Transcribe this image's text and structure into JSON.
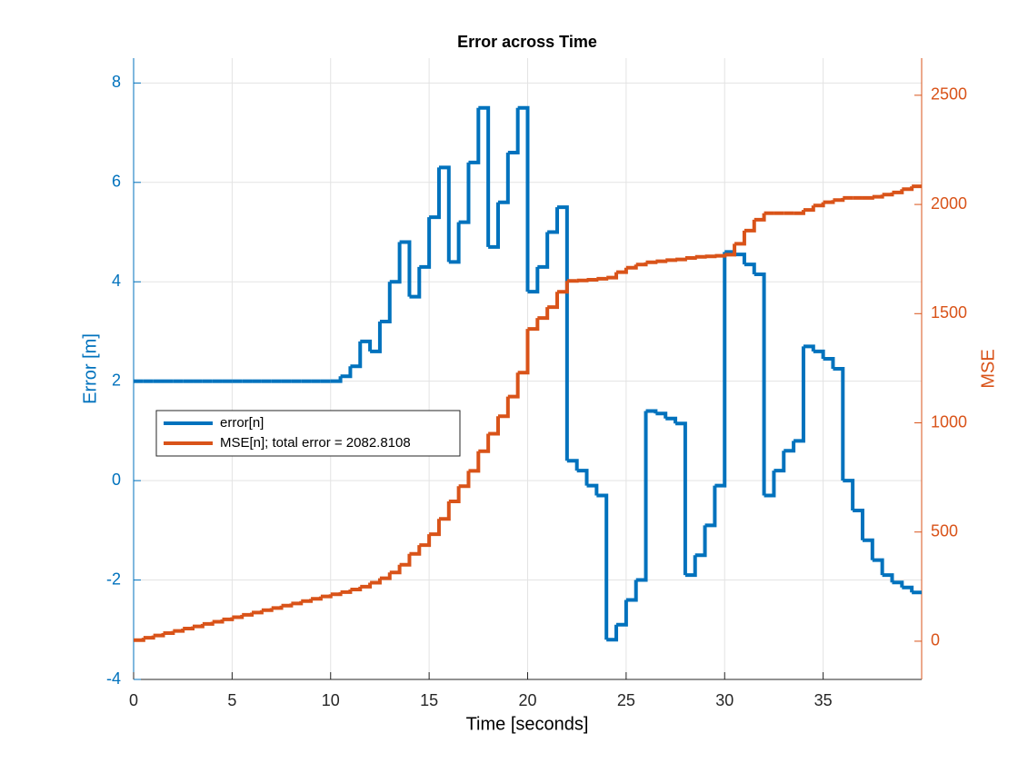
{
  "chart_data": {
    "type": "stairs",
    "title": "Error across Time",
    "xlabel": "Time [seconds]",
    "ylabel": "Error [m]",
    "y2label": "MSE",
    "x": [
      0,
      0.5,
      1,
      1.5,
      2,
      2.5,
      3,
      3.5,
      4,
      4.5,
      5,
      5.5,
      6,
      6.5,
      7,
      7.5,
      8,
      8.5,
      9,
      9.5,
      10,
      10.5,
      11,
      11.5,
      12,
      12.5,
      13,
      13.5,
      14,
      14.5,
      15,
      15.5,
      16,
      16.5,
      17,
      17.5,
      18,
      18.5,
      19,
      19.5,
      20,
      20.5,
      21,
      21.5,
      22,
      22.5,
      23,
      23.5,
      24,
      24.5,
      25,
      25.5,
      26,
      26.5,
      27,
      27.5,
      28,
      28.5,
      29,
      29.5,
      30,
      30.5,
      31,
      31.5,
      32,
      32.5,
      33,
      33.5,
      34,
      34.5,
      35,
      35.5,
      36,
      36.5,
      37,
      37.5,
      38,
      38.5,
      39,
      39.5
    ],
    "series": [
      {
        "name": "error[n]",
        "color": "#0072bd",
        "axis": "y",
        "values": [
          2,
          2,
          2,
          2,
          2,
          2,
          2,
          2,
          2,
          2,
          2,
          2,
          2,
          2,
          2,
          2,
          2,
          2,
          2,
          2,
          2,
          2.1,
          2.3,
          2.8,
          2.6,
          3.2,
          4.0,
          4.8,
          3.7,
          4.3,
          5.3,
          6.3,
          4.4,
          5.2,
          6.4,
          7.5,
          4.7,
          5.6,
          6.6,
          7.5,
          3.8,
          4.3,
          5.0,
          5.5,
          0.4,
          0.2,
          -0.1,
          -0.3,
          -3.2,
          -2.9,
          -2.4,
          -2.0,
          1.4,
          1.35,
          1.25,
          1.15,
          -1.9,
          -1.5,
          -0.9,
          -0.1,
          4.6,
          4.55,
          4.35,
          4.15,
          -0.3,
          0.2,
          0.6,
          0.8,
          2.7,
          2.6,
          2.45,
          2.25,
          0.0,
          -0.6,
          -1.2,
          -1.6,
          -1.9,
          -2.05,
          -2.15,
          -2.25
        ]
      },
      {
        "name": "MSE[n]; total error = 2082.8108",
        "color": "#d95319",
        "axis": "y2",
        "values": [
          5,
          16,
          26,
          37,
          47,
          58,
          68,
          79,
          89,
          100,
          110,
          121,
          131,
          142,
          152,
          163,
          173,
          184,
          194,
          205,
          215,
          225,
          237,
          250,
          268,
          288,
          315,
          350,
          400,
          440,
          490,
          560,
          640,
          710,
          780,
          870,
          950,
          1030,
          1120,
          1230,
          1430,
          1480,
          1530,
          1600,
          1650,
          1652,
          1655,
          1660,
          1665,
          1690,
          1710,
          1725,
          1735,
          1740,
          1745,
          1748,
          1755,
          1760,
          1762,
          1765,
          1770,
          1820,
          1880,
          1930,
          1960,
          1960,
          1960,
          1960,
          1975,
          1995,
          2010,
          2020,
          2030,
          2030,
          2030,
          2035,
          2045,
          2055,
          2070,
          2083
        ]
      }
    ],
    "xlim": [
      0,
      40
    ],
    "xticks": [
      0,
      5,
      10,
      15,
      20,
      25,
      30,
      35
    ],
    "ylim": [
      -4,
      8.5
    ],
    "yticks": [
      -4,
      -2,
      0,
      2,
      4,
      6,
      8
    ],
    "y2lim": [
      -175,
      2670
    ],
    "y2ticks": [
      0,
      500,
      1000,
      1500,
      2000,
      2500
    ],
    "grid": true,
    "legend": "west"
  }
}
